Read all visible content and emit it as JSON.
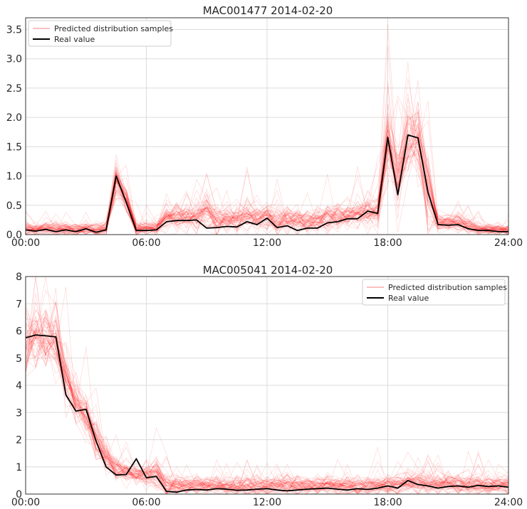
{
  "colors": {
    "samples": "#ff0000",
    "real": "#000000",
    "grid": "#dcdcdc",
    "legend_sample_swatch": "#f08080"
  },
  "legend_labels": {
    "samples": "Predicted distribution samples",
    "real": "Real value"
  },
  "chart_data": [
    {
      "type": "line",
      "title": "MAC001477 2014-02-20",
      "xlabel": "",
      "ylabel": "",
      "x_ticks": [
        "00:00",
        "06:00",
        "12:00",
        "18:00",
        "24:00"
      ],
      "y_ticks": [
        "0.0",
        "0.5",
        "1.0",
        "1.5",
        "2.0",
        "2.5",
        "3.0",
        "3.5"
      ],
      "xlim": [
        0,
        24
      ],
      "ylim": [
        0,
        3.7
      ],
      "grid": true,
      "legend_position": "top-left",
      "series": [
        {
          "name": "Real value",
          "x": [
            0,
            0.5,
            1,
            1.5,
            2,
            2.5,
            3,
            3.5,
            4,
            4.5,
            5,
            5.5,
            6,
            6.5,
            7,
            7.5,
            8,
            8.5,
            9,
            9.5,
            10,
            10.5,
            11,
            11.5,
            12,
            12.5,
            13,
            13.5,
            14,
            14.5,
            15,
            15.5,
            16,
            16.5,
            17,
            17.5,
            18,
            18.5,
            19,
            19.5,
            20,
            20.5,
            21,
            21.5,
            22,
            22.5,
            23,
            23.5,
            24
          ],
          "values": [
            0.08,
            0.06,
            0.09,
            0.05,
            0.08,
            0.05,
            0.1,
            0.04,
            0.08,
            1.0,
            0.55,
            0.07,
            0.07,
            0.08,
            0.22,
            0.24,
            0.24,
            0.25,
            0.11,
            0.12,
            0.14,
            0.13,
            0.22,
            0.17,
            0.28,
            0.12,
            0.15,
            0.07,
            0.11,
            0.11,
            0.2,
            0.22,
            0.27,
            0.27,
            0.4,
            0.36,
            1.66,
            0.68,
            1.7,
            1.65,
            0.72,
            0.17,
            0.16,
            0.17,
            0.1,
            0.07,
            0.07,
            0.05,
            0.05
          ]
        },
        {
          "name": "Predicted distribution samples",
          "sample_count": 60,
          "x": [
            0,
            0.5,
            1,
            1.5,
            2,
            2.5,
            3,
            3.5,
            4,
            4.5,
            5,
            5.5,
            6,
            6.5,
            7,
            7.5,
            8,
            8.5,
            9,
            9.5,
            10,
            10.5,
            11,
            11.5,
            12,
            12.5,
            13,
            13.5,
            14,
            14.5,
            15,
            15.5,
            16,
            16.5,
            17,
            17.5,
            18,
            18.5,
            19,
            19.5,
            20,
            20.5,
            21,
            21.5,
            22,
            22.5,
            23,
            23.5,
            24
          ],
          "mean": [
            0.1,
            0.08,
            0.1,
            0.08,
            0.09,
            0.08,
            0.1,
            0.07,
            0.09,
            0.95,
            0.6,
            0.1,
            0.1,
            0.12,
            0.3,
            0.3,
            0.3,
            0.28,
            0.42,
            0.22,
            0.25,
            0.26,
            0.3,
            0.27,
            0.3,
            0.25,
            0.25,
            0.22,
            0.23,
            0.24,
            0.27,
            0.3,
            0.32,
            0.33,
            0.4,
            0.4,
            1.6,
            0.9,
            1.65,
            1.7,
            0.8,
            0.2,
            0.2,
            0.2,
            0.15,
            0.1,
            0.1,
            0.08,
            0.08
          ],
          "spread": [
            0.06,
            0.06,
            0.06,
            0.06,
            0.06,
            0.06,
            0.06,
            0.06,
            0.06,
            0.15,
            0.12,
            0.06,
            0.06,
            0.06,
            0.12,
            0.12,
            0.12,
            0.12,
            0.15,
            0.12,
            0.12,
            0.12,
            0.14,
            0.12,
            0.12,
            0.12,
            0.12,
            0.1,
            0.1,
            0.1,
            0.12,
            0.12,
            0.12,
            0.12,
            0.15,
            0.15,
            0.35,
            0.3,
            0.35,
            0.35,
            0.3,
            0.08,
            0.08,
            0.08,
            0.06,
            0.05,
            0.05,
            0.05,
            0.05
          ]
        }
      ]
    },
    {
      "type": "line",
      "title": "MAC005041 2014-02-20",
      "xlabel": "",
      "ylabel": "",
      "x_ticks": [
        "00:00",
        "06:00",
        "12:00",
        "18:00",
        "24:00"
      ],
      "y_ticks": [
        "0",
        "1",
        "2",
        "3",
        "4",
        "5",
        "6",
        "7",
        "8"
      ],
      "xlim": [
        0,
        24
      ],
      "ylim": [
        0,
        8
      ],
      "grid": true,
      "legend_position": "top-right",
      "series": [
        {
          "name": "Real value",
          "x": [
            0,
            0.5,
            1,
            1.5,
            2,
            2.5,
            3,
            3.5,
            4,
            4.5,
            5,
            5.5,
            6,
            6.5,
            7,
            7.5,
            8,
            8.5,
            9,
            9.5,
            10,
            10.5,
            11,
            11.5,
            12,
            12.5,
            13,
            13.5,
            14,
            14.5,
            15,
            15.5,
            16,
            16.5,
            17,
            17.5,
            18,
            18.5,
            19,
            19.5,
            20,
            20.5,
            21,
            21.5,
            22,
            22.5,
            23,
            23.5,
            24
          ],
          "values": [
            5.75,
            5.85,
            5.82,
            5.78,
            3.65,
            3.05,
            3.12,
            1.95,
            1.0,
            0.7,
            0.72,
            1.3,
            0.6,
            0.65,
            0.1,
            0.07,
            0.15,
            0.17,
            0.15,
            0.2,
            0.18,
            0.14,
            0.15,
            0.18,
            0.2,
            0.15,
            0.12,
            0.15,
            0.18,
            0.2,
            0.22,
            0.18,
            0.15,
            0.2,
            0.17,
            0.22,
            0.3,
            0.22,
            0.5,
            0.35,
            0.3,
            0.22,
            0.28,
            0.3,
            0.25,
            0.32,
            0.28,
            0.3,
            0.25
          ]
        },
        {
          "name": "Predicted distribution samples",
          "sample_count": 60,
          "x": [
            0,
            0.5,
            1,
            1.5,
            2,
            2.5,
            3,
            3.5,
            4,
            4.5,
            5,
            5.5,
            6,
            6.5,
            7,
            7.5,
            8,
            8.5,
            9,
            9.5,
            10,
            10.5,
            11,
            11.5,
            12,
            12.5,
            13,
            13.5,
            14,
            14.5,
            15,
            15.5,
            16,
            16.5,
            17,
            17.5,
            18,
            18.5,
            19,
            19.5,
            20,
            20.5,
            21,
            21.5,
            22,
            22.5,
            23,
            23.5,
            24
          ],
          "mean": [
            5.5,
            5.7,
            5.8,
            5.6,
            4.2,
            3.4,
            2.9,
            2.0,
            1.3,
            0.95,
            0.8,
            0.75,
            0.7,
            0.7,
            0.35,
            0.3,
            0.3,
            0.32,
            0.3,
            0.3,
            0.3,
            0.3,
            0.3,
            0.3,
            0.3,
            0.3,
            0.3,
            0.3,
            0.3,
            0.3,
            0.3,
            0.3,
            0.3,
            0.3,
            0.3,
            0.3,
            0.35,
            0.35,
            0.4,
            0.38,
            0.35,
            0.35,
            0.35,
            0.35,
            0.35,
            0.35,
            0.35,
            0.35,
            0.35
          ],
          "spread": [
            0.6,
            0.6,
            0.6,
            0.6,
            0.5,
            0.45,
            0.4,
            0.35,
            0.25,
            0.2,
            0.2,
            0.2,
            0.25,
            0.3,
            0.2,
            0.18,
            0.18,
            0.18,
            0.18,
            0.18,
            0.18,
            0.18,
            0.18,
            0.18,
            0.18,
            0.18,
            0.18,
            0.18,
            0.18,
            0.18,
            0.18,
            0.18,
            0.18,
            0.18,
            0.18,
            0.18,
            0.2,
            0.2,
            0.22,
            0.2,
            0.2,
            0.2,
            0.2,
            0.2,
            0.2,
            0.2,
            0.2,
            0.2,
            0.2
          ]
        }
      ]
    }
  ]
}
